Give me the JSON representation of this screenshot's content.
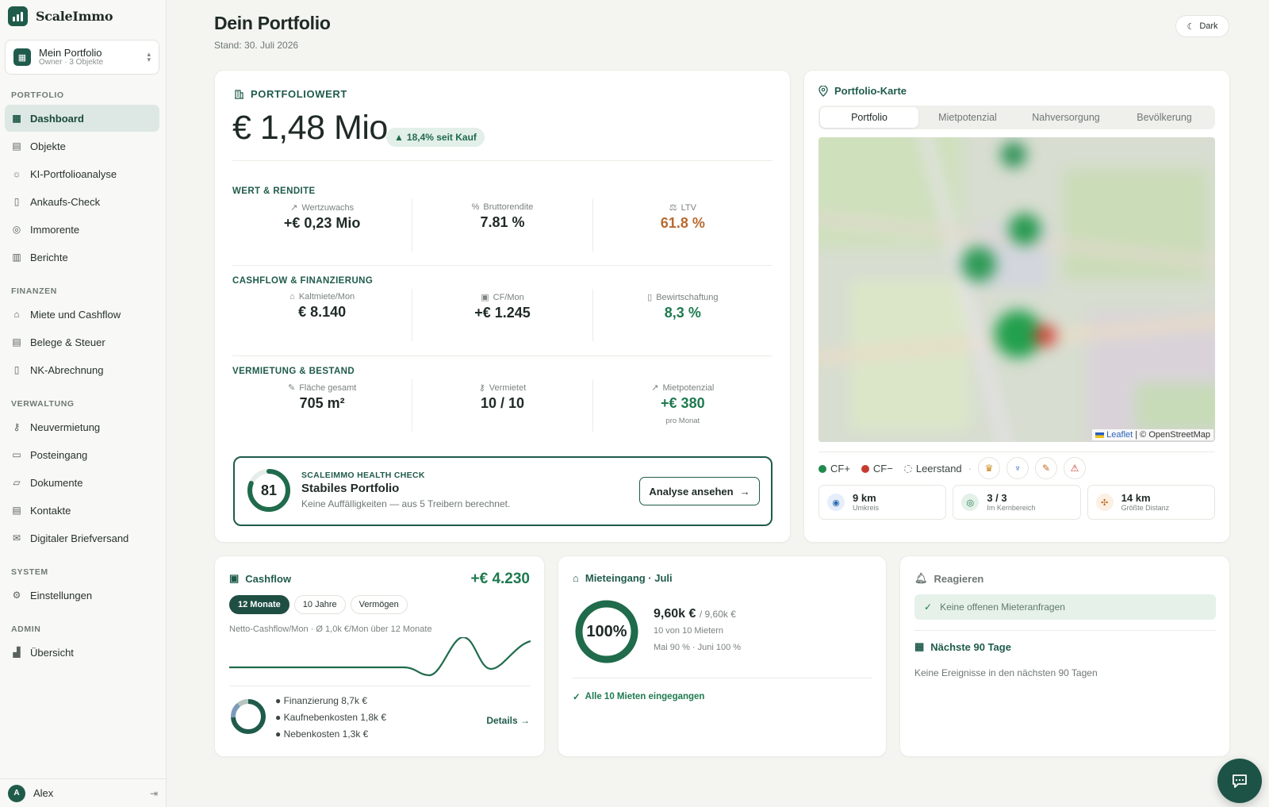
{
  "brand": {
    "name": "ScaleImmo"
  },
  "portfolio_switch": {
    "title": "Mein Portfolio",
    "subtitle": "Owner · 3 Objekte"
  },
  "nav": {
    "sections": [
      {
        "label": "PORTFOLIO",
        "items": [
          "Dashboard",
          "Objekte",
          "KI-Portfolioanalyse",
          "Ankaufs-Check",
          "Immorente",
          "Berichte"
        ]
      },
      {
        "label": "FINANZEN",
        "items": [
          "Miete und Cashflow",
          "Belege & Steuer",
          "NK-Abrechnung"
        ]
      },
      {
        "label": "VERWALTUNG",
        "items": [
          "Neuvermietung",
          "Posteingang",
          "Dokumente",
          "Kontakte",
          "Digitaler Briefversand"
        ]
      },
      {
        "label": "SYSTEM",
        "items": [
          "Einstellungen"
        ]
      },
      {
        "label": "ADMIN",
        "items": [
          "Übersicht"
        ]
      }
    ],
    "active": "Dashboard"
  },
  "user": {
    "initial": "A",
    "name": "Alex"
  },
  "header": {
    "title": "Dein Portfolio",
    "subtitle": "Stand: 30. Juli 2026",
    "theme_button": "Dark"
  },
  "portfolio_value": {
    "heading": "PORTFOLIOWERT",
    "value": "€ 1,48 Mio",
    "badge": "18,4% seit Kauf",
    "sections": [
      {
        "label": "WERT & RENDITE",
        "metrics": [
          {
            "label": "Wertzuwachs",
            "value": "+€ 0,23 Mio"
          },
          {
            "label": "Bruttorendite",
            "value": "7.81 %"
          },
          {
            "label": "LTV",
            "value": "61.8 %"
          }
        ]
      },
      {
        "label": "CASHFLOW & FINANZIERUNG",
        "metrics": [
          {
            "label": "Kaltmiete/Mon",
            "value": "€ 8.140"
          },
          {
            "label": "CF/Mon",
            "value": "+€ 1.245"
          },
          {
            "label": "Bewirtschaftung",
            "value": "8,3 %"
          }
        ]
      },
      {
        "label": "VERMIETUNG & BESTAND",
        "metrics": [
          {
            "label": "Fläche gesamt",
            "value": "705 m²"
          },
          {
            "label": "Vermietet",
            "value": "10 / 10"
          },
          {
            "label": "Mietpotenzial",
            "value": "+€ 380",
            "note": "pro Monat"
          }
        ]
      }
    ],
    "health": {
      "score": "81",
      "score_fraction": 0.81,
      "kicker": "SCALEIMMO HEALTH CHECK",
      "title": "Stabiles Portfolio",
      "description": "Keine Auffälligkeiten — aus 5 Treibern berechnet.",
      "button": "Analyse ansehen"
    }
  },
  "map": {
    "title": "Portfolio-Karte",
    "tabs": [
      "Portfolio",
      "Mietpotenzial",
      "Nahversorgung",
      "Bevölkerung"
    ],
    "active_tab": "Portfolio",
    "attribution_link": "Leaflet",
    "attribution_text": "| © OpenStreetMap",
    "legend": {
      "positive": "CF+",
      "negative": "CF−",
      "vacant": "Leerstand"
    },
    "colors": {
      "positive": "#1f8a4c",
      "negative": "#c93a2e",
      "vacant": "#8a918d"
    },
    "stats": [
      {
        "value": "9 km",
        "label": "Umkreis"
      },
      {
        "value": "3 / 3",
        "label": "Im Kernbereich"
      },
      {
        "value": "14 km",
        "label": "Größte Distanz"
      }
    ]
  },
  "cashflow": {
    "title": "Cashflow",
    "total": "+€ 4.230",
    "ranges": [
      "12 Monate",
      "10 Jahre",
      "Vermögen"
    ],
    "active_range": "12 Monate",
    "subtitle": "Netto-Cashflow/Mon · Ø 1,0k €/Mon über 12 Monate",
    "breakdown": [
      {
        "label": "Finanzierung 8,7k €",
        "share": 0.74
      },
      {
        "label": "Kaufnebenkosten 1,8k €",
        "share": 0.15
      },
      {
        "label": "Nebenkosten 1,3k €",
        "share": 0.11
      }
    ],
    "details_link": "Details →"
  },
  "rent_income": {
    "title": "Mieteingang · Juli",
    "percent": "100%",
    "fraction": 1.0,
    "received": "9,60k €",
    "expected": "/ 9,60k €",
    "count_line": "10 von 10 Mietern",
    "trend_line": "Mai 90 % · Juni 100 %",
    "status": "Alle 10 Mieten eingegangen"
  },
  "react": {
    "title": "Reagieren",
    "ok_message": "Keine offenen Mieteranfragen",
    "upcoming_title": "Nächste 90 Tage",
    "upcoming_empty": "Keine Ereignisse in den nächsten 90 Tagen"
  },
  "colors": {
    "brand": "#1f5b4b",
    "positive": "#1f7a4f",
    "warning": "#b96a2e"
  }
}
